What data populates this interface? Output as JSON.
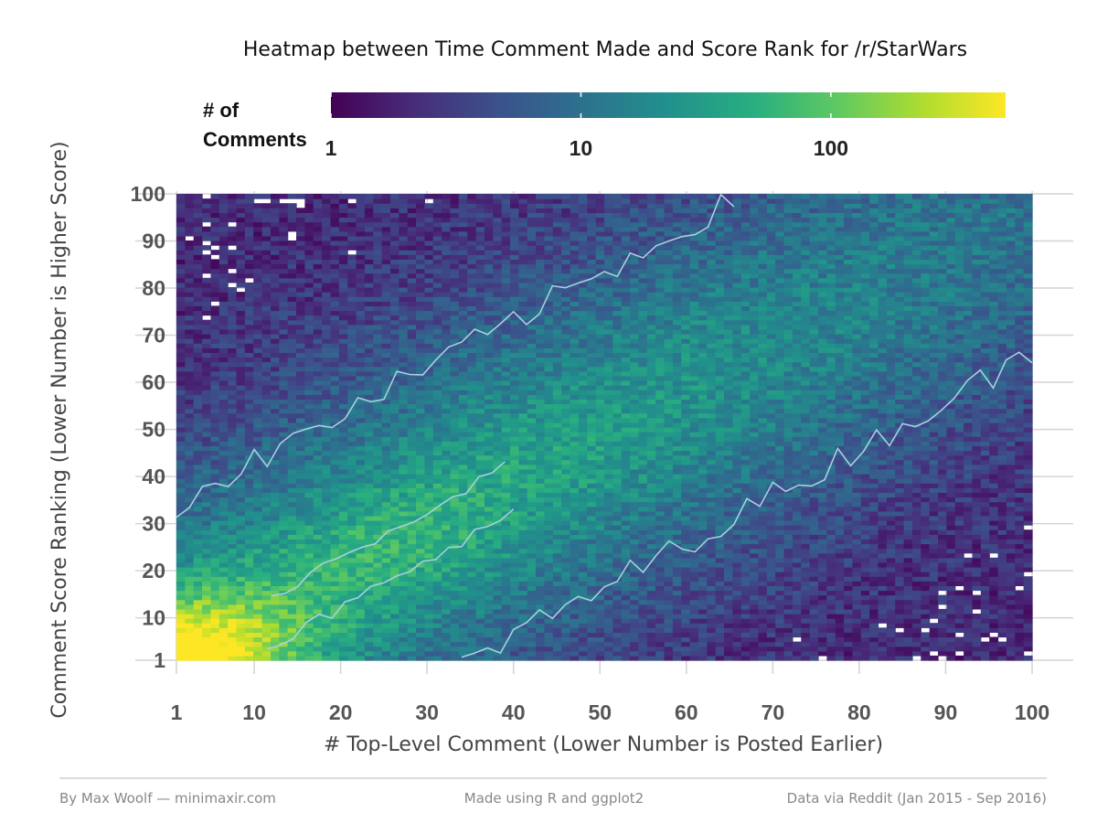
{
  "chart_data": {
    "type": "heatmap",
    "title": "Heatmap between Time Comment Made and Score Rank for /r/StarWars",
    "xlabel": "# Top-Level Comment (Lower Number is Posted Earlier)",
    "ylabel": "Comment Score Ranking (Lower Number is Higher Score)",
    "xlim": [
      1,
      100
    ],
    "ylim": [
      1,
      100
    ],
    "x_ticks": [
      "1",
      "10",
      "20",
      "30",
      "40",
      "50",
      "60",
      "70",
      "80",
      "90",
      "100"
    ],
    "y_ticks": [
      "1",
      "10",
      "20",
      "30",
      "40",
      "50",
      "60",
      "70",
      "80",
      "90",
      "100"
    ],
    "x_tick_values": [
      1,
      10,
      20,
      30,
      40,
      50,
      60,
      70,
      80,
      90,
      100
    ],
    "y_tick_values": [
      1,
      10,
      20,
      30,
      40,
      50,
      60,
      70,
      80,
      90,
      100
    ],
    "grid": true,
    "color_scale": {
      "title_line1": "# of",
      "title_line2": "Comments",
      "scale": "log10",
      "min": 1,
      "max": 500,
      "ticks": [
        "1",
        "10",
        "100"
      ],
      "tick_values": [
        1,
        10,
        100
      ],
      "palette": [
        "#440154",
        "#472d7b",
        "#3b528b",
        "#2c728e",
        "#21918c",
        "#28ae80",
        "#5ec962",
        "#addc30",
        "#fde725"
      ],
      "legend_position": "top"
    },
    "density_model": {
      "description_levels": "counts per bin, approximate",
      "peak_at": [
        1,
        1
      ],
      "peak_count": 500,
      "diagonal_ridge_count": 25,
      "corner_background_count": 2
    },
    "contour_color": "#a9cfe0"
  },
  "footer": {
    "left": "By Max Woolf — minimaxir.com",
    "center": "Made using R and ggplot2",
    "right": "Data via Reddit (Jan 2015 - Sep 2016)"
  }
}
